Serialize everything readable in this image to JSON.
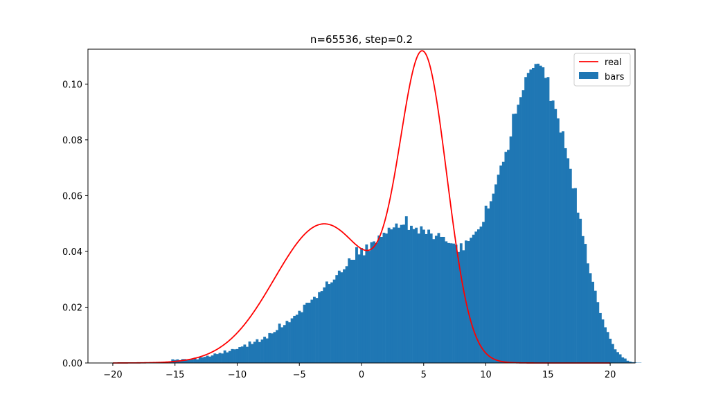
{
  "chart_data": {
    "type": "bar",
    "title": "n=65536, step=0.2",
    "xlabel": "",
    "ylabel": "",
    "xlim": [
      -22.0,
      22.0
    ],
    "ylim": [
      0.0,
      0.1125
    ],
    "x_ticks": [
      -20,
      -15,
      -10,
      -5,
      0,
      5,
      10,
      15,
      20
    ],
    "x_tick_labels": [
      "−20",
      "−15",
      "−10",
      "−5",
      "0",
      "5",
      "10",
      "15",
      "20"
    ],
    "y_ticks": [
      0.0,
      0.02,
      0.04,
      0.06,
      0.08,
      0.1
    ],
    "y_tick_labels": [
      "0.00",
      "0.02",
      "0.04",
      "0.06",
      "0.08",
      "0.10"
    ],
    "grid": false,
    "legend_position": "top-right",
    "step": 0.2,
    "series": [
      {
        "name": "real",
        "kind": "line",
        "color": "#ff0000",
        "x_range": [
          -20,
          20
        ],
        "mixture": [
          {
            "weight": 0.5,
            "mean": -3,
            "sd": 4
          },
          {
            "weight": 0.5,
            "mean": 5,
            "sd": 1.9
          }
        ]
      },
      {
        "name": "bars",
        "kind": "bar",
        "color": "#1f77b4",
        "bin_width": 0.2,
        "x_range": [
          -15.5,
          11.5
        ],
        "values": [
          0.0006,
          0.0013,
          0.0011,
          0.0013,
          0.001,
          0.0014,
          0.0014,
          0.0012,
          0.0011,
          0.0013,
          0.0019,
          0.0013,
          0.0021,
          0.002,
          0.0022,
          0.0026,
          0.0023,
          0.0027,
          0.0034,
          0.0032,
          0.0036,
          0.0034,
          0.0045,
          0.0038,
          0.0043,
          0.005,
          0.0049,
          0.005,
          0.0057,
          0.0059,
          0.0066,
          0.0058,
          0.0077,
          0.0068,
          0.0076,
          0.0085,
          0.0075,
          0.0084,
          0.0094,
          0.0088,
          0.0107,
          0.0106,
          0.0111,
          0.0118,
          0.0141,
          0.0128,
          0.0136,
          0.0151,
          0.0146,
          0.016,
          0.0169,
          0.0173,
          0.0187,
          0.0182,
          0.0209,
          0.0216,
          0.0216,
          0.0227,
          0.0237,
          0.0233,
          0.0254,
          0.0258,
          0.0271,
          0.0292,
          0.0283,
          0.0289,
          0.0299,
          0.0315,
          0.0331,
          0.0325,
          0.0336,
          0.0347,
          0.0375,
          0.037,
          0.037,
          0.0415,
          0.0389,
          0.0412,
          0.0386,
          0.0425,
          0.0402,
          0.0433,
          0.0436,
          0.043,
          0.0457,
          0.0452,
          0.0467,
          0.0464,
          0.0485,
          0.0479,
          0.0486,
          0.05,
          0.0485,
          0.0495,
          0.0496,
          0.0526,
          0.0477,
          0.0492,
          0.048,
          0.0485,
          0.0464,
          0.049,
          0.0478,
          0.0462,
          0.0478,
          0.0464,
          0.0444,
          0.0456,
          0.0466,
          0.0452,
          0.0452,
          0.0436,
          0.043,
          0.0429,
          0.0428,
          0.0424,
          0.0398,
          0.0429,
          0.0404,
          0.0439,
          0.0437,
          0.0449,
          0.046,
          0.0471,
          0.0479,
          0.0489,
          0.0506,
          0.0564,
          0.0554,
          0.058,
          0.0607,
          0.064,
          0.0675,
          0.0708,
          0.0721,
          0.0757,
          0.0764,
          0.0812,
          0.0893,
          0.0894,
          0.0926,
          0.0953,
          0.0978,
          0.1025,
          0.104,
          0.1052,
          0.1058,
          0.1072,
          0.1073,
          0.1066,
          0.106,
          0.1022,
          0.1025,
          0.0939,
          0.0941,
          0.0911,
          0.0877,
          0.0826,
          0.0831,
          0.077,
          0.0734,
          0.0696,
          0.0626,
          0.0627,
          0.0539,
          0.0517,
          0.0455,
          0.0427,
          0.0357,
          0.0322,
          0.0291,
          0.0259,
          0.0218,
          0.0179,
          0.0156,
          0.0128,
          0.0111,
          0.0087,
          0.0068,
          0.0049,
          0.0039,
          0.0031,
          0.002,
          0.0016,
          0.0008,
          0.0005,
          0.0003,
          0.0002,
          0.0001,
          0.0001
        ]
      }
    ]
  },
  "legend": {
    "real_label": "real",
    "bars_label": "bars"
  }
}
